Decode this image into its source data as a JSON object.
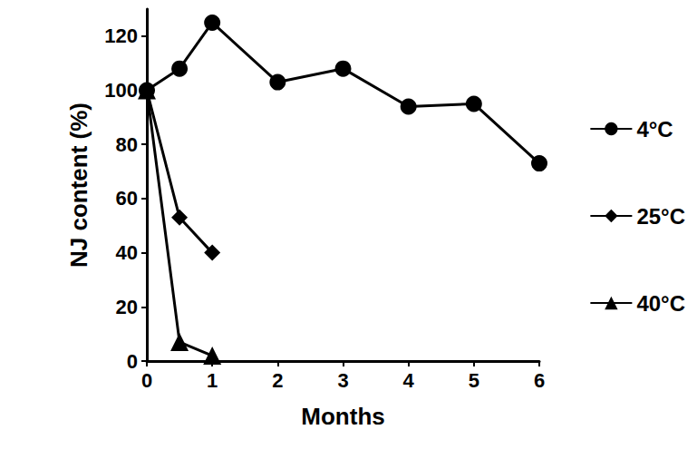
{
  "chart_data": {
    "type": "line",
    "xlabel": "Months",
    "ylabel": "NJ content (%)",
    "xlim": [
      0,
      6
    ],
    "xticks": [
      0,
      1,
      2,
      3,
      4,
      5,
      6
    ],
    "ylim": [
      0,
      130
    ],
    "yticks": [
      0,
      20,
      40,
      60,
      80,
      100,
      120
    ],
    "grid": false,
    "legend": "right",
    "series": [
      {
        "name": "4°C",
        "color": "#000000",
        "marker": "circle",
        "line_style": "solid",
        "x": [
          0,
          0.5,
          1,
          2,
          3,
          4,
          5,
          6
        ],
        "values": [
          100,
          108,
          125,
          103,
          108,
          94,
          95,
          73
        ]
      },
      {
        "name": "25°C",
        "color": "#000000",
        "marker": "diamond",
        "line_style": "solid",
        "x": [
          0,
          0.5,
          1
        ],
        "values": [
          100,
          53,
          40
        ]
      },
      {
        "name": "40°C",
        "color": "#000000",
        "marker": "triangle",
        "line_style": "solid",
        "x": [
          0,
          0.5,
          1
        ],
        "values": [
          100,
          7,
          2
        ]
      }
    ]
  }
}
